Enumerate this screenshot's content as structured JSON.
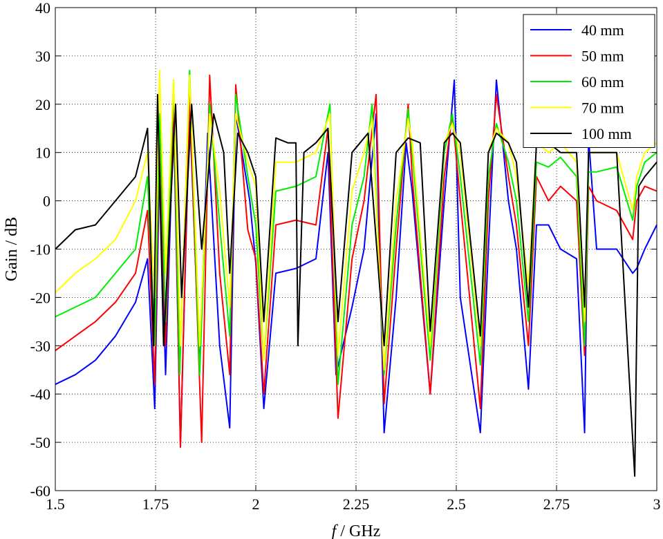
{
  "chart_data": {
    "type": "line",
    "xlabel_italic": "f",
    "xlabel_rest": " / GHz",
    "ylabel": "Gain / dB",
    "xlim": [
      1.5,
      3.0
    ],
    "ylim": [
      -60,
      40
    ],
    "x_ticks": [
      1.5,
      1.75,
      2.0,
      2.25,
      2.5,
      2.75,
      3.0
    ],
    "x_tick_labels": [
      "1.5",
      "1.75",
      "2",
      "2.25",
      "2.5",
      "2.75",
      "3"
    ],
    "y_ticks": [
      -60,
      -50,
      -40,
      -30,
      -20,
      -10,
      0,
      10,
      20,
      30,
      40
    ],
    "y_tick_labels": [
      "-60",
      "-50",
      "-40",
      "-30",
      "-20",
      "-10",
      "0",
      "10",
      "20",
      "30",
      "40"
    ],
    "grid": true,
    "legend_position": "top-right",
    "series": [
      {
        "name": "40 mm",
        "color": "#0000ff",
        "points": [
          [
            1.5,
            -38
          ],
          [
            1.55,
            -36
          ],
          [
            1.6,
            -33
          ],
          [
            1.65,
            -28
          ],
          [
            1.7,
            -21
          ],
          [
            1.73,
            -12
          ],
          [
            1.748,
            -43
          ],
          [
            1.76,
            8
          ],
          [
            1.775,
            -36
          ],
          [
            1.795,
            18
          ],
          [
            1.812,
            -51
          ],
          [
            1.835,
            19
          ],
          [
            1.86,
            -35
          ],
          [
            1.88,
            14
          ],
          [
            1.91,
            -30
          ],
          [
            1.935,
            -47
          ],
          [
            1.95,
            18
          ],
          [
            1.985,
            0
          ],
          [
            2.0,
            -13
          ],
          [
            2.02,
            -43
          ],
          [
            2.05,
            -15
          ],
          [
            2.1,
            -14
          ],
          [
            2.15,
            -12
          ],
          [
            2.18,
            10
          ],
          [
            2.2,
            -36
          ],
          [
            2.24,
            -22
          ],
          [
            2.27,
            -10
          ],
          [
            2.3,
            18
          ],
          [
            2.32,
            -48
          ],
          [
            2.35,
            -20
          ],
          [
            2.375,
            12
          ],
          [
            2.39,
            2
          ],
          [
            2.435,
            -40
          ],
          [
            2.47,
            0
          ],
          [
            2.495,
            25
          ],
          [
            2.51,
            -20
          ],
          [
            2.56,
            -48
          ],
          [
            2.58,
            -10
          ],
          [
            2.6,
            25
          ],
          [
            2.63,
            0
          ],
          [
            2.65,
            -10
          ],
          [
            2.68,
            -39
          ],
          [
            2.7,
            -5
          ],
          [
            2.73,
            -5
          ],
          [
            2.76,
            -10
          ],
          [
            2.8,
            -12
          ],
          [
            2.82,
            -48
          ],
          [
            2.83,
            13
          ],
          [
            2.85,
            -10
          ],
          [
            2.9,
            -10
          ],
          [
            2.94,
            -15
          ],
          [
            2.95,
            -14
          ],
          [
            2.97,
            -10
          ],
          [
            3.0,
            -5
          ]
        ]
      },
      {
        "name": "50 mm",
        "color": "#ff0000",
        "points": [
          [
            1.5,
            -31
          ],
          [
            1.55,
            -28
          ],
          [
            1.6,
            -25
          ],
          [
            1.65,
            -21
          ],
          [
            1.7,
            -15
          ],
          [
            1.73,
            -2
          ],
          [
            1.748,
            -38
          ],
          [
            1.76,
            15
          ],
          [
            1.775,
            -30
          ],
          [
            1.795,
            22
          ],
          [
            1.812,
            -51
          ],
          [
            1.835,
            22
          ],
          [
            1.865,
            -50
          ],
          [
            1.885,
            26
          ],
          [
            1.91,
            -15
          ],
          [
            1.935,
            -36
          ],
          [
            1.95,
            24
          ],
          [
            1.98,
            -6
          ],
          [
            2.0,
            -12
          ],
          [
            2.02,
            -40
          ],
          [
            2.05,
            -5
          ],
          [
            2.1,
            -4
          ],
          [
            2.15,
            -5
          ],
          [
            2.18,
            15
          ],
          [
            2.205,
            -45
          ],
          [
            2.24,
            -12
          ],
          [
            2.27,
            0
          ],
          [
            2.3,
            22
          ],
          [
            2.32,
            -42
          ],
          [
            2.35,
            -10
          ],
          [
            2.38,
            20
          ],
          [
            2.39,
            5
          ],
          [
            2.435,
            -40
          ],
          [
            2.47,
            5
          ],
          [
            2.49,
            18
          ],
          [
            2.51,
            0
          ],
          [
            2.56,
            -43
          ],
          [
            2.58,
            0
          ],
          [
            2.6,
            22
          ],
          [
            2.63,
            5
          ],
          [
            2.65,
            -5
          ],
          [
            2.68,
            -30
          ],
          [
            2.7,
            5
          ],
          [
            2.73,
            0
          ],
          [
            2.76,
            3
          ],
          [
            2.8,
            0
          ],
          [
            2.82,
            -32
          ],
          [
            2.83,
            3
          ],
          [
            2.85,
            0
          ],
          [
            2.9,
            -2
          ],
          [
            2.94,
            -8
          ],
          [
            2.95,
            0
          ],
          [
            2.97,
            3
          ],
          [
            3.0,
            2
          ]
        ]
      },
      {
        "name": "60 mm",
        "color": "#00ee00",
        "points": [
          [
            1.5,
            -24
          ],
          [
            1.55,
            -22
          ],
          [
            1.6,
            -20
          ],
          [
            1.65,
            -15
          ],
          [
            1.7,
            -10
          ],
          [
            1.73,
            5
          ],
          [
            1.748,
            -30
          ],
          [
            1.76,
            18
          ],
          [
            1.775,
            -25
          ],
          [
            1.795,
            25
          ],
          [
            1.81,
            -36
          ],
          [
            1.835,
            27
          ],
          [
            1.86,
            -36
          ],
          [
            1.885,
            20
          ],
          [
            1.91,
            -5
          ],
          [
            1.935,
            -28
          ],
          [
            1.95,
            22
          ],
          [
            1.98,
            5
          ],
          [
            2.0,
            -5
          ],
          [
            2.02,
            -33
          ],
          [
            2.05,
            2
          ],
          [
            2.1,
            3
          ],
          [
            2.15,
            5
          ],
          [
            2.185,
            20
          ],
          [
            2.205,
            -38
          ],
          [
            2.24,
            -5
          ],
          [
            2.27,
            5
          ],
          [
            2.29,
            20
          ],
          [
            2.32,
            -36
          ],
          [
            2.35,
            -5
          ],
          [
            2.38,
            19
          ],
          [
            2.39,
            10
          ],
          [
            2.435,
            -33
          ],
          [
            2.47,
            10
          ],
          [
            2.49,
            18
          ],
          [
            2.51,
            5
          ],
          [
            2.56,
            -34
          ],
          [
            2.58,
            5
          ],
          [
            2.6,
            16
          ],
          [
            2.63,
            8
          ],
          [
            2.65,
            0
          ],
          [
            2.68,
            -25
          ],
          [
            2.7,
            8
          ],
          [
            2.73,
            7
          ],
          [
            2.76,
            9
          ],
          [
            2.8,
            5
          ],
          [
            2.82,
            -30
          ],
          [
            2.83,
            6
          ],
          [
            2.85,
            6
          ],
          [
            2.9,
            7
          ],
          [
            2.94,
            -4
          ],
          [
            2.95,
            3
          ],
          [
            2.97,
            8
          ],
          [
            3.0,
            10
          ]
        ]
      },
      {
        "name": "70 mm",
        "color": "#ffff00",
        "points": [
          [
            1.5,
            -19
          ],
          [
            1.55,
            -15
          ],
          [
            1.6,
            -12
          ],
          [
            1.65,
            -8
          ],
          [
            1.7,
            0
          ],
          [
            1.73,
            10
          ],
          [
            1.748,
            -20
          ],
          [
            1.76,
            27
          ],
          [
            1.775,
            -15
          ],
          [
            1.795,
            25
          ],
          [
            1.812,
            -30
          ],
          [
            1.835,
            26
          ],
          [
            1.86,
            -30
          ],
          [
            1.885,
            18
          ],
          [
            1.91,
            2
          ],
          [
            1.935,
            -22
          ],
          [
            1.95,
            18
          ],
          [
            1.98,
            8
          ],
          [
            2.0,
            3
          ],
          [
            2.02,
            -33
          ],
          [
            2.05,
            8
          ],
          [
            2.1,
            8
          ],
          [
            2.15,
            10
          ],
          [
            2.185,
            18
          ],
          [
            2.205,
            -32
          ],
          [
            2.24,
            2
          ],
          [
            2.27,
            10
          ],
          [
            2.29,
            17
          ],
          [
            2.32,
            -35
          ],
          [
            2.35,
            0
          ],
          [
            2.38,
            17
          ],
          [
            2.39,
            12
          ],
          [
            2.435,
            -30
          ],
          [
            2.47,
            12
          ],
          [
            2.49,
            16
          ],
          [
            2.51,
            10
          ],
          [
            2.56,
            -30
          ],
          [
            2.58,
            10
          ],
          [
            2.6,
            15
          ],
          [
            2.63,
            12
          ],
          [
            2.65,
            5
          ],
          [
            2.68,
            -18
          ],
          [
            2.7,
            12
          ],
          [
            2.73,
            10
          ],
          [
            2.76,
            12
          ],
          [
            2.8,
            8
          ],
          [
            2.82,
            -25
          ],
          [
            2.83,
            10
          ],
          [
            2.85,
            10
          ],
          [
            2.9,
            10
          ],
          [
            2.94,
            -2
          ],
          [
            2.95,
            5
          ],
          [
            2.97,
            10
          ],
          [
            3.0,
            12
          ]
        ]
      },
      {
        "name": "100 mm",
        "color": "#000000",
        "points": [
          [
            1.5,
            -10
          ],
          [
            1.55,
            -6
          ],
          [
            1.6,
            -5
          ],
          [
            1.65,
            0
          ],
          [
            1.7,
            5
          ],
          [
            1.73,
            15
          ],
          [
            1.745,
            -30
          ],
          [
            1.755,
            22
          ],
          [
            1.77,
            -30
          ],
          [
            1.8,
            20
          ],
          [
            1.815,
            -20
          ],
          [
            1.84,
            20
          ],
          [
            1.865,
            -10
          ],
          [
            1.895,
            18
          ],
          [
            1.92,
            10
          ],
          [
            1.935,
            -15
          ],
          [
            1.955,
            14
          ],
          [
            1.98,
            10
          ],
          [
            2.0,
            5
          ],
          [
            2.02,
            -25
          ],
          [
            2.05,
            13
          ],
          [
            2.08,
            12
          ],
          [
            2.1,
            12
          ],
          [
            2.105,
            -30
          ],
          [
            2.12,
            10
          ],
          [
            2.15,
            12
          ],
          [
            2.18,
            15
          ],
          [
            2.205,
            -25
          ],
          [
            2.24,
            10
          ],
          [
            2.28,
            14
          ],
          [
            2.32,
            -30
          ],
          [
            2.35,
            10
          ],
          [
            2.38,
            13
          ],
          [
            2.41,
            12
          ],
          [
            2.435,
            -27
          ],
          [
            2.47,
            12
          ],
          [
            2.49,
            14
          ],
          [
            2.51,
            12
          ],
          [
            2.56,
            -28
          ],
          [
            2.58,
            10
          ],
          [
            2.6,
            14
          ],
          [
            2.63,
            12
          ],
          [
            2.65,
            8
          ],
          [
            2.68,
            -22
          ],
          [
            2.7,
            12
          ],
          [
            2.73,
            12
          ],
          [
            2.76,
            10
          ],
          [
            2.8,
            10
          ],
          [
            2.82,
            -22
          ],
          [
            2.83,
            10
          ],
          [
            2.85,
            10
          ],
          [
            2.9,
            10
          ],
          [
            2.945,
            -57
          ],
          [
            2.955,
            3
          ],
          [
            2.97,
            5
          ],
          [
            3.0,
            8
          ]
        ]
      }
    ]
  }
}
